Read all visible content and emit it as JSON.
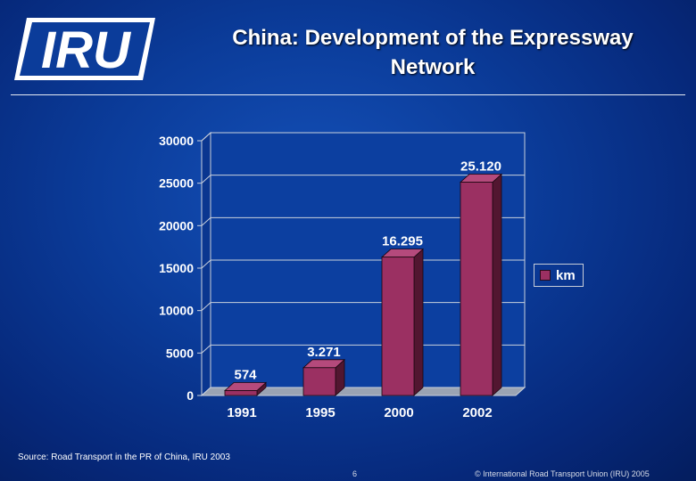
{
  "header": {
    "logo_text": "IRU",
    "title_line1": "China: Development of the Expressway",
    "title_line2": "Network"
  },
  "chart_data": {
    "type": "bar",
    "title": "China: Development of the Expressway Network",
    "categories": [
      "1991",
      "1995",
      "2000",
      "2002"
    ],
    "series": [
      {
        "name": "km",
        "values": [
          574,
          3271,
          16295,
          25120
        ]
      }
    ],
    "data_labels": [
      "574",
      "3.271",
      "16.295",
      "25.120"
    ],
    "ylim": [
      0,
      30000
    ],
    "yticks": [
      0,
      5000,
      10000,
      15000,
      20000,
      25000,
      30000
    ],
    "grid": true,
    "legend": "right",
    "colors": {
      "bar_front": "#9b3062",
      "bar_side": "#521630",
      "bar_top": "#b54a7c",
      "plot_bg": "#0c3fa0",
      "grid": "#c9d0dc"
    }
  },
  "footer": {
    "source": "Source: Road Transport in the PR of China, IRU 2003",
    "page_number": "6",
    "copyright": "© International Road Transport Union (IRU) 2005"
  }
}
